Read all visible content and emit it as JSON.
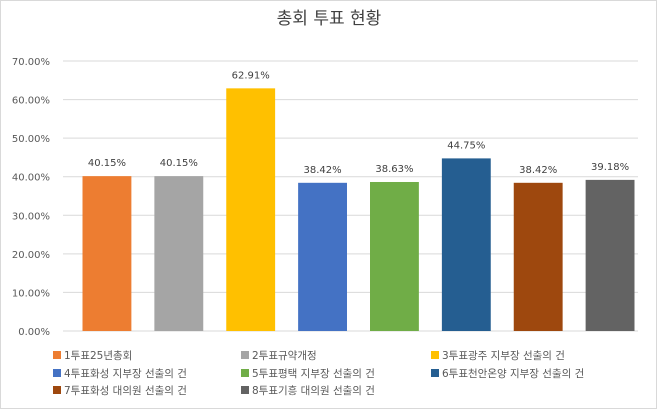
{
  "chart_data": {
    "type": "bar",
    "title": "총회 투표 현황",
    "xlabel": "",
    "ylabel": "",
    "ylim": [
      0,
      70
    ],
    "ytick_values": [
      0,
      10,
      20,
      30,
      40,
      50,
      60,
      70
    ],
    "ytick_labels": [
      "0.00%",
      "10.00%",
      "20.00%",
      "30.00%",
      "40.00%",
      "50.00%",
      "60.00%",
      "70.00%"
    ],
    "grid": true,
    "legend_position": "bottom",
    "categories": [
      "1투표25년총회",
      "2투표규약개정",
      "3투표광주 지부장 선출의 건",
      "4투표화성 지부장 선출의 건",
      "5투표평택 지부장 선출의 건",
      "6투표천안온양 지부장 선출의 건",
      "7투표화성 대의원 선출의 건",
      "8투표기흥 대의원 선출의 건"
    ],
    "values": [
      40.15,
      40.15,
      62.91,
      38.42,
      38.63,
      44.75,
      38.42,
      39.18
    ],
    "data_labels": [
      "40.15%",
      "40.15%",
      "62.91%",
      "38.42%",
      "38.63%",
      "44.75%",
      "38.42%",
      "39.18%"
    ],
    "colors": [
      "#ED7D31",
      "#A5A5A5",
      "#FFC000",
      "#4472C4",
      "#70AD47",
      "#255E91",
      "#9E480E",
      "#636363"
    ]
  }
}
